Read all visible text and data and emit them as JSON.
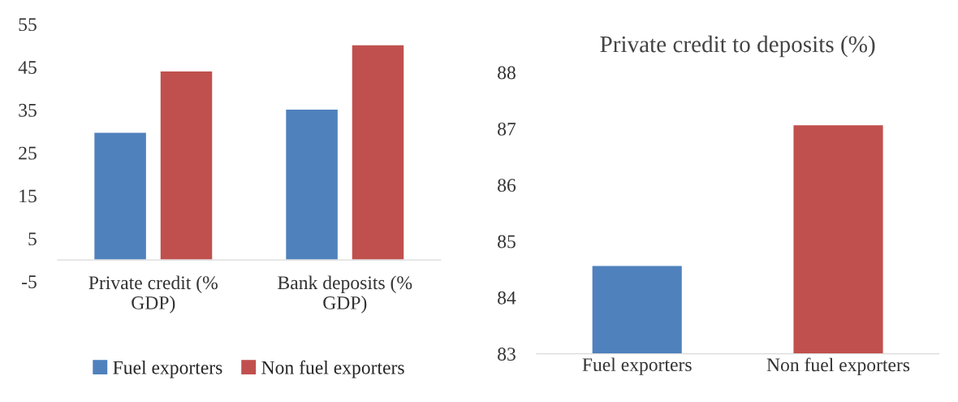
{
  "chart_data": [
    {
      "type": "bar",
      "categories": [
        "Private credit (% GDP)",
        "Bank deposits (% GDP)"
      ],
      "series": [
        {
          "name": "Fuel exporters",
          "color": "#4f81bd",
          "values": [
            29.8,
            35.2
          ]
        },
        {
          "name": "Non fuel exporters",
          "color": "#c0504d",
          "values": [
            44.1,
            50.2
          ]
        }
      ],
      "ylim": [
        -5,
        55
      ],
      "yticks": [
        -5,
        5,
        15,
        25,
        35,
        45,
        55
      ],
      "grid": false,
      "legend": "bottom"
    },
    {
      "type": "bar",
      "title": "Private credit to deposits (%)",
      "categories": [
        "Fuel exporters",
        "Non fuel exporters"
      ],
      "values": [
        84.57,
        87.07
      ],
      "colors": [
        "#4f81bd",
        "#c0504d"
      ],
      "ylim": [
        83,
        88
      ],
      "yticks": [
        83,
        84,
        85,
        86,
        87,
        88
      ],
      "grid": false,
      "legend": false
    }
  ]
}
